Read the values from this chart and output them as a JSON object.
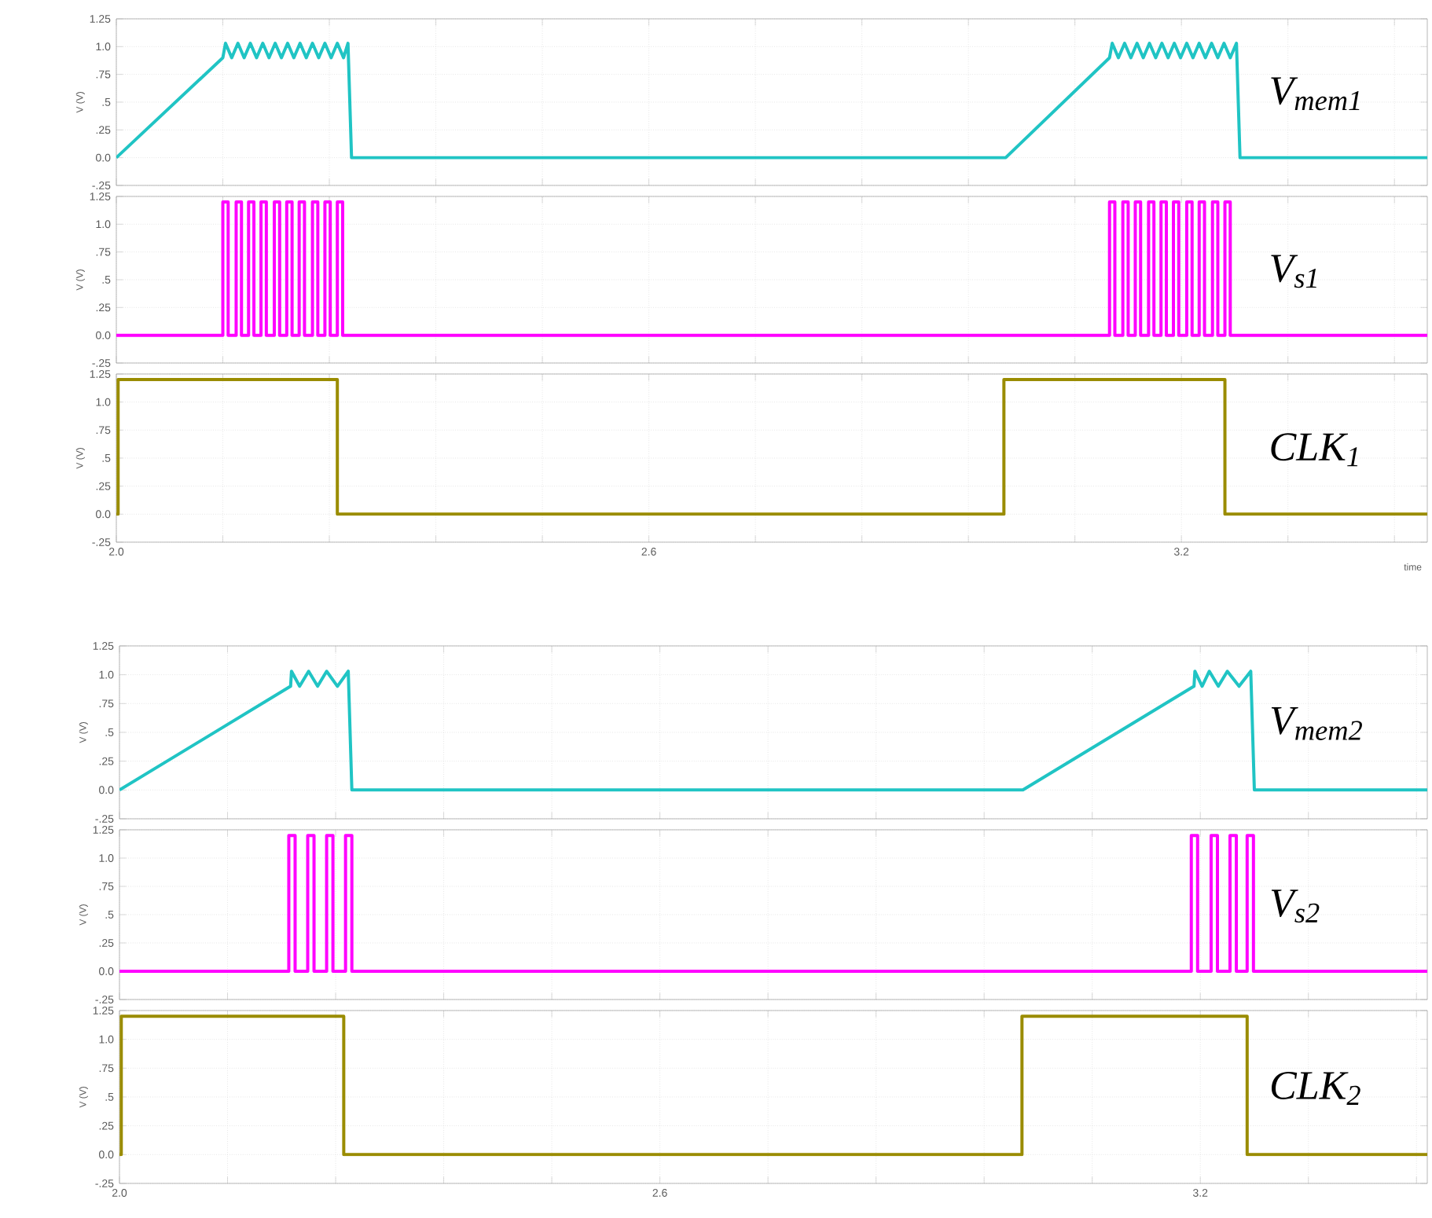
{
  "chart_data": [
    {
      "type": "line",
      "xlim": [
        2.0,
        3.477
      ],
      "ylim": [
        -0.25,
        1.25
      ],
      "ylabel": "V (V)",
      "grid": true,
      "tick_labels": "y",
      "marker": "none",
      "line_style": "solid",
      "xticks": [
        {
          "value": 2.0,
          "label": null
        },
        {
          "value": 2.12,
          "label": null
        },
        {
          "value": 2.24,
          "label": null
        },
        {
          "value": 2.36,
          "label": null
        },
        {
          "value": 2.48,
          "label": null
        },
        {
          "value": 2.6,
          "label": null
        },
        {
          "value": 2.72,
          "label": null
        },
        {
          "value": 2.84,
          "label": null
        },
        {
          "value": 2.96,
          "label": null
        },
        {
          "value": 3.08,
          "label": null
        },
        {
          "value": 3.2,
          "label": null
        },
        {
          "value": 3.32,
          "label": null
        },
        {
          "value": 3.44,
          "label": null
        }
      ],
      "yticks": [
        {
          "value": -0.25,
          "label": "-.25"
        },
        {
          "value": 0,
          "label": "0.0"
        },
        {
          "value": 0.25,
          "label": ".25"
        },
        {
          "value": 0.5,
          "label": ".5"
        },
        {
          "value": 0.75,
          "label": ".75"
        },
        {
          "value": 1.0,
          "label": "1.0"
        },
        {
          "value": 1.25,
          "label": "1.25"
        }
      ],
      "series": [
        {
          "name": "V$_{mem1}$",
          "color": "#20c4c4",
          "x": [
            2.0,
            2.12,
            2.123,
            2.13,
            2.137,
            2.144,
            2.151,
            2.158,
            2.165,
            2.172,
            2.179,
            2.186,
            2.193,
            2.2,
            2.207,
            2.214,
            2.221,
            2.228,
            2.235,
            2.242,
            2.249,
            2.256,
            2.261,
            2.265,
            3.002,
            3.119,
            3.122,
            3.129,
            3.136,
            3.143,
            3.15,
            3.157,
            3.164,
            3.171,
            3.178,
            3.185,
            3.192,
            3.199,
            3.206,
            3.213,
            3.22,
            3.227,
            3.234,
            3.241,
            3.248,
            3.255,
            3.262,
            3.266,
            3.477
          ],
          "values": [
            0,
            0.9,
            1.03,
            0.9,
            1.03,
            0.9,
            1.03,
            0.9,
            1.03,
            0.9,
            1.03,
            0.9,
            1.03,
            0.9,
            1.03,
            0.9,
            1.03,
            0.9,
            1.03,
            0.9,
            1.03,
            0.9,
            1.03,
            0,
            0,
            0.9,
            1.03,
            0.9,
            1.03,
            0.9,
            1.03,
            0.9,
            1.03,
            0.9,
            1.03,
            0.9,
            1.03,
            0.9,
            1.03,
            0.9,
            1.03,
            0.9,
            1.03,
            0.9,
            1.03,
            0.9,
            1.03,
            0,
            0
          ]
        }
      ]
    },
    {
      "type": "line",
      "xlim": [
        2.0,
        3.477
      ],
      "ylim": [
        -0.25,
        1.25
      ],
      "ylabel": "V (V)",
      "grid": true,
      "tick_labels": "y",
      "marker": "none",
      "line_style": "solid",
      "xticks": [
        {
          "value": 2.0,
          "label": null
        },
        {
          "value": 2.12,
          "label": null
        },
        {
          "value": 2.24,
          "label": null
        },
        {
          "value": 2.36,
          "label": null
        },
        {
          "value": 2.48,
          "label": null
        },
        {
          "value": 2.6,
          "label": null
        },
        {
          "value": 2.72,
          "label": null
        },
        {
          "value": 2.84,
          "label": null
        },
        {
          "value": 2.96,
          "label": null
        },
        {
          "value": 3.08,
          "label": null
        },
        {
          "value": 3.2,
          "label": null
        },
        {
          "value": 3.32,
          "label": null
        },
        {
          "value": 3.44,
          "label": null
        }
      ],
      "yticks": [
        {
          "value": -0.25,
          "label": "-.25"
        },
        {
          "value": 0,
          "label": "0.0"
        },
        {
          "value": 0.25,
          "label": ".25"
        },
        {
          "value": 0.5,
          "label": ".5"
        },
        {
          "value": 0.75,
          "label": ".75"
        },
        {
          "value": 1.0,
          "label": "1.0"
        },
        {
          "value": 1.25,
          "label": "1.25"
        }
      ],
      "series": [
        {
          "name": "V$_{s1}$",
          "color": "#ff00ff",
          "x": [
            2.0,
            2.12,
            2.12,
            2.126,
            2.126,
            2.135,
            2.135,
            2.141,
            2.141,
            2.149,
            2.149,
            2.155,
            2.155,
            2.163,
            2.163,
            2.169,
            2.169,
            2.178,
            2.178,
            2.184,
            2.184,
            2.192,
            2.192,
            2.198,
            2.198,
            2.206,
            2.206,
            2.212,
            2.212,
            2.221,
            2.221,
            2.227,
            2.227,
            2.235,
            2.235,
            2.241,
            2.241,
            2.249,
            2.249,
            2.255,
            2.255,
            3.119,
            3.119,
            3.125,
            3.125,
            3.134,
            3.134,
            3.14,
            3.14,
            3.148,
            3.148,
            3.154,
            3.154,
            3.163,
            3.163,
            3.169,
            3.169,
            3.177,
            3.177,
            3.183,
            3.183,
            3.191,
            3.191,
            3.197,
            3.197,
            3.206,
            3.206,
            3.212,
            3.212,
            3.22,
            3.22,
            3.226,
            3.226,
            3.235,
            3.235,
            3.241,
            3.241,
            3.249,
            3.249,
            3.255,
            3.255,
            3.477
          ],
          "values": [
            0,
            0,
            1.2,
            1.2,
            0,
            0,
            1.2,
            1.2,
            0,
            0,
            1.2,
            1.2,
            0,
            0,
            1.2,
            1.2,
            0,
            0,
            1.2,
            1.2,
            0,
            0,
            1.2,
            1.2,
            0,
            0,
            1.2,
            1.2,
            0,
            0,
            1.2,
            1.2,
            0,
            0,
            1.2,
            1.2,
            0,
            0,
            1.2,
            1.2,
            0,
            0,
            1.2,
            1.2,
            0,
            0,
            1.2,
            1.2,
            0,
            0,
            1.2,
            1.2,
            0,
            0,
            1.2,
            1.2,
            0,
            0,
            1.2,
            1.2,
            0,
            0,
            1.2,
            1.2,
            0,
            0,
            1.2,
            1.2,
            0,
            0,
            1.2,
            1.2,
            0,
            0,
            1.2,
            1.2,
            0,
            0,
            1.2,
            1.2,
            0,
            0
          ]
        }
      ]
    },
    {
      "type": "line",
      "xlim": [
        2.0,
        3.477
      ],
      "ylim": [
        -0.25,
        1.25
      ],
      "ylabel": "V (V)",
      "xlabel": "time",
      "grid": true,
      "marker": "none",
      "line_style": "solid",
      "xticks": [
        {
          "value": 2.0,
          "label": "2.0"
        },
        {
          "value": 2.12,
          "label": null
        },
        {
          "value": 2.24,
          "label": null
        },
        {
          "value": 2.36,
          "label": null
        },
        {
          "value": 2.48,
          "label": null
        },
        {
          "value": 2.6,
          "label": "2.6"
        },
        {
          "value": 2.72,
          "label": null
        },
        {
          "value": 2.84,
          "label": null
        },
        {
          "value": 2.96,
          "label": null
        },
        {
          "value": 3.08,
          "label": null
        },
        {
          "value": 3.2,
          "label": "3.2"
        },
        {
          "value": 3.32,
          "label": null
        },
        {
          "value": 3.44,
          "label": null
        }
      ],
      "yticks": [
        {
          "value": -0.25,
          "label": "-.25"
        },
        {
          "value": 0,
          "label": "0.0"
        },
        {
          "value": 0.25,
          "label": ".25"
        },
        {
          "value": 0.5,
          "label": ".5"
        },
        {
          "value": 0.75,
          "label": ".75"
        },
        {
          "value": 1.0,
          "label": "1.0"
        },
        {
          "value": 1.25,
          "label": "1.25"
        }
      ],
      "series": [
        {
          "name": "CLK$_{1}$",
          "color": "#9a8c00",
          "x": [
            2.0,
            2.002,
            2.002,
            2.249,
            2.249,
            3.0,
            3.0,
            3.249,
            3.249,
            3.477
          ],
          "values": [
            0,
            0,
            1.2,
            1.2,
            0,
            0,
            1.2,
            1.2,
            0,
            0
          ]
        }
      ]
    },
    {
      "type": "line",
      "xlim": [
        2.0,
        3.452
      ],
      "ylim": [
        -0.25,
        1.25
      ],
      "ylabel": "V (V)",
      "grid": true,
      "tick_labels": "y",
      "marker": "none",
      "line_style": "solid",
      "xticks": [
        {
          "value": 2.0,
          "label": null
        },
        {
          "value": 2.12,
          "label": null
        },
        {
          "value": 2.24,
          "label": null
        },
        {
          "value": 2.36,
          "label": null
        },
        {
          "value": 2.48,
          "label": null
        },
        {
          "value": 2.6,
          "label": null
        },
        {
          "value": 2.72,
          "label": null
        },
        {
          "value": 2.84,
          "label": null
        },
        {
          "value": 2.96,
          "label": null
        },
        {
          "value": 3.08,
          "label": null
        },
        {
          "value": 3.2,
          "label": null
        },
        {
          "value": 3.32,
          "label": null
        },
        {
          "value": 3.44,
          "label": null
        }
      ],
      "yticks": [
        {
          "value": -0.25,
          "label": "-.25"
        },
        {
          "value": 0,
          "label": "0.0"
        },
        {
          "value": 0.25,
          "label": ".25"
        },
        {
          "value": 0.5,
          "label": ".5"
        },
        {
          "value": 0.75,
          "label": ".75"
        },
        {
          "value": 1.0,
          "label": "1.0"
        },
        {
          "value": 1.25,
          "label": "1.25"
        }
      ],
      "series": [
        {
          "name": "V$_{mem2}$",
          "color": "#20c4c4",
          "x": [
            2.0,
            2.19,
            2.191,
            2.2,
            2.21,
            2.22,
            2.23,
            2.242,
            2.254,
            2.258,
            3.003,
            3.193,
            3.194,
            3.202,
            3.21,
            3.22,
            3.23,
            3.243,
            3.256,
            3.26,
            3.452
          ],
          "values": [
            0,
            0.9,
            1.03,
            0.9,
            1.03,
            0.9,
            1.03,
            0.9,
            1.03,
            0,
            0,
            0.9,
            1.03,
            0.9,
            1.03,
            0.9,
            1.03,
            0.9,
            1.03,
            0,
            0
          ]
        }
      ]
    },
    {
      "type": "line",
      "xlim": [
        2.0,
        3.452
      ],
      "ylim": [
        -0.25,
        1.25
      ],
      "ylabel": "V (V)",
      "grid": true,
      "tick_labels": "y",
      "marker": "none",
      "line_style": "solid",
      "xticks": [
        {
          "value": 2.0,
          "label": null
        },
        {
          "value": 2.12,
          "label": null
        },
        {
          "value": 2.24,
          "label": null
        },
        {
          "value": 2.36,
          "label": null
        },
        {
          "value": 2.48,
          "label": null
        },
        {
          "value": 2.6,
          "label": null
        },
        {
          "value": 2.72,
          "label": null
        },
        {
          "value": 2.84,
          "label": null
        },
        {
          "value": 2.96,
          "label": null
        },
        {
          "value": 3.08,
          "label": null
        },
        {
          "value": 3.2,
          "label": null
        },
        {
          "value": 3.32,
          "label": null
        },
        {
          "value": 3.44,
          "label": null
        }
      ],
      "yticks": [
        {
          "value": -0.25,
          "label": "-.25"
        },
        {
          "value": 0,
          "label": "0.0"
        },
        {
          "value": 0.25,
          "label": ".25"
        },
        {
          "value": 0.5,
          "label": ".5"
        },
        {
          "value": 0.75,
          "label": ".75"
        },
        {
          "value": 1.0,
          "label": "1.0"
        },
        {
          "value": 1.25,
          "label": "1.25"
        }
      ],
      "series": [
        {
          "name": "V$_{s2}$",
          "color": "#ff00ff",
          "x": [
            2.0,
            2.188,
            2.188,
            2.195,
            2.195,
            2.209,
            2.209,
            2.216,
            2.216,
            2.23,
            2.23,
            2.237,
            2.237,
            2.251,
            2.251,
            2.258,
            2.258,
            3.19,
            3.19,
            3.197,
            3.197,
            3.212,
            3.212,
            3.219,
            3.219,
            3.233,
            3.233,
            3.24,
            3.24,
            3.252,
            3.252,
            3.259,
            3.259,
            3.452
          ],
          "values": [
            0,
            0,
            1.2,
            1.2,
            0,
            0,
            1.2,
            1.2,
            0,
            0,
            1.2,
            1.2,
            0,
            0,
            1.2,
            1.2,
            0,
            0,
            1.2,
            1.2,
            0,
            0,
            1.2,
            1.2,
            0,
            0,
            1.2,
            1.2,
            0,
            0,
            1.2,
            1.2,
            0,
            0
          ]
        }
      ]
    },
    {
      "type": "line",
      "xlim": [
        2.0,
        3.452
      ],
      "ylim": [
        -0.25,
        1.25
      ],
      "ylabel": "V (V)",
      "grid": true,
      "marker": "none",
      "line_style": "solid",
      "xticks": [
        {
          "value": 2.0,
          "label": "2.0"
        },
        {
          "value": 2.12,
          "label": null
        },
        {
          "value": 2.24,
          "label": null
        },
        {
          "value": 2.36,
          "label": null
        },
        {
          "value": 2.48,
          "label": null
        },
        {
          "value": 2.6,
          "label": "2.6"
        },
        {
          "value": 2.72,
          "label": null
        },
        {
          "value": 2.84,
          "label": null
        },
        {
          "value": 2.96,
          "label": null
        },
        {
          "value": 3.08,
          "label": null
        },
        {
          "value": 3.2,
          "label": "3.2"
        },
        {
          "value": 3.32,
          "label": null
        },
        {
          "value": 3.44,
          "label": null
        }
      ],
      "yticks": [
        {
          "value": -0.25,
          "label": "-.25"
        },
        {
          "value": 0,
          "label": "0.0"
        },
        {
          "value": 0.25,
          "label": ".25"
        },
        {
          "value": 0.5,
          "label": ".5"
        },
        {
          "value": 0.75,
          "label": ".75"
        },
        {
          "value": 1.0,
          "label": "1.0"
        },
        {
          "value": 1.25,
          "label": "1.25"
        }
      ],
      "series": [
        {
          "name": "CLK$_{2}$",
          "color": "#9a8c00",
          "x": [
            2.0,
            2.002,
            2.002,
            2.249,
            2.249,
            3.002,
            3.002,
            3.252,
            3.252,
            3.452
          ],
          "values": [
            0,
            0,
            1.2,
            1.2,
            0,
            0,
            1.2,
            1.2,
            0,
            0
          ]
        }
      ]
    }
  ]
}
